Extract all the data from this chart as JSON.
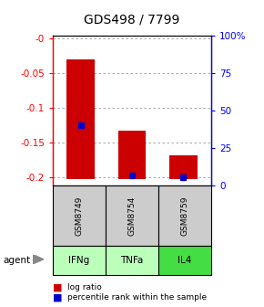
{
  "title": "GDS498 / 7799",
  "samples": [
    "GSM8749",
    "GSM8754",
    "GSM8759"
  ],
  "agents": [
    "IFNg",
    "TNFa",
    "IL4"
  ],
  "bar_tops": [
    -0.03,
    -0.132,
    -0.168
  ],
  "bar_bottoms": [
    -0.202,
    -0.202,
    -0.202
  ],
  "blue_y": [
    -0.125,
    -0.197,
    -0.2
  ],
  "bar_color": "#cc0000",
  "blue_color": "#0000cc",
  "ylim_min": -0.212,
  "ylim_max": 0.005,
  "y_left_ticks": [
    0,
    -0.05,
    -0.1,
    -0.15,
    -0.2
  ],
  "y_left_labels": [
    "-0",
    "-0.05",
    "-0.1",
    "-0.15",
    "-0.2"
  ],
  "y_right_ticks_pct": [
    100,
    75,
    50,
    25,
    0
  ],
  "agent_colors": [
    "#bbffbb",
    "#bbffbb",
    "#44dd44"
  ],
  "sample_bg": "#cccccc",
  "title_fontsize": 10,
  "tick_fontsize": 7.5,
  "bar_width": 0.55
}
